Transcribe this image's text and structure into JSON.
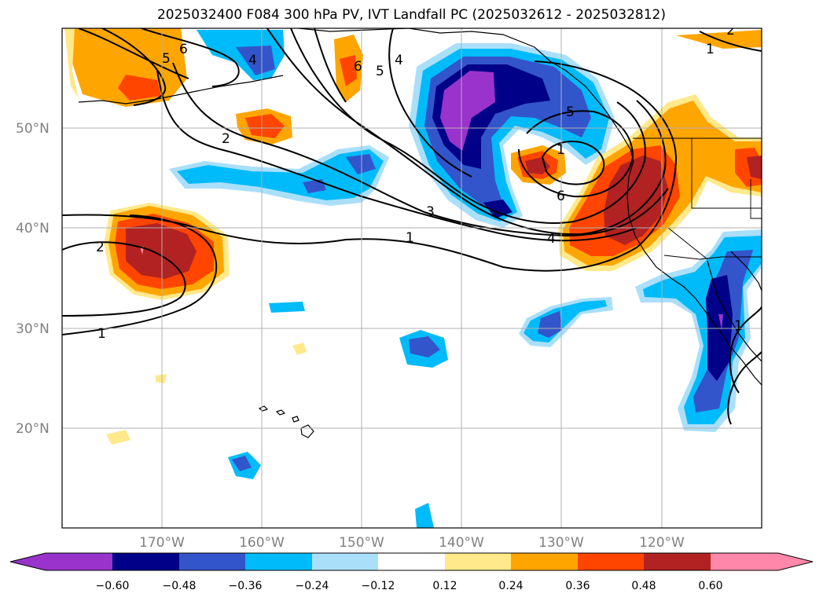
{
  "title": "2025032400 F084 300 hPa PV, IVT Landfall PC (2025032612 - 2025032812)",
  "map_extent": {
    "lon": [
      -180,
      -110
    ],
    "lat": [
      10,
      60
    ]
  },
  "lat_ticks": [
    {
      "lat": 50,
      "label": "50°N"
    },
    {
      "lat": 40,
      "label": "40°N"
    },
    {
      "lat": 30,
      "label": "30°N"
    },
    {
      "lat": 20,
      "label": "20°N"
    }
  ],
  "lon_ticks": [
    {
      "lon": -170,
      "label": "170°W"
    },
    {
      "lon": -160,
      "label": "160°W"
    },
    {
      "lon": -150,
      "label": "150°W"
    },
    {
      "lon": -140,
      "label": "140°W"
    },
    {
      "lon": -130,
      "label": "130°W"
    },
    {
      "lon": -120,
      "label": "120°W"
    }
  ],
  "colorbar": {
    "colors": [
      "#9933cc",
      "#000088",
      "#3355cc",
      "#00bbf9",
      "#aadffa",
      "#ffffff",
      "#ffe98a",
      "#ffa500",
      "#ff4500",
      "#b22222",
      "#ff88aa"
    ],
    "tick_labels": [
      "−0.60",
      "−0.48",
      "−0.36",
      "−0.24",
      "−0.12",
      "0.12",
      "0.24",
      "0.36",
      "0.48",
      "0.60"
    ]
  },
  "contour_labels": [
    "6",
    "5",
    "4",
    "6",
    "5",
    "4",
    "2",
    "5",
    "1",
    "6",
    "4",
    "3",
    "1",
    "2",
    "1",
    "1",
    "2",
    "1"
  ]
}
